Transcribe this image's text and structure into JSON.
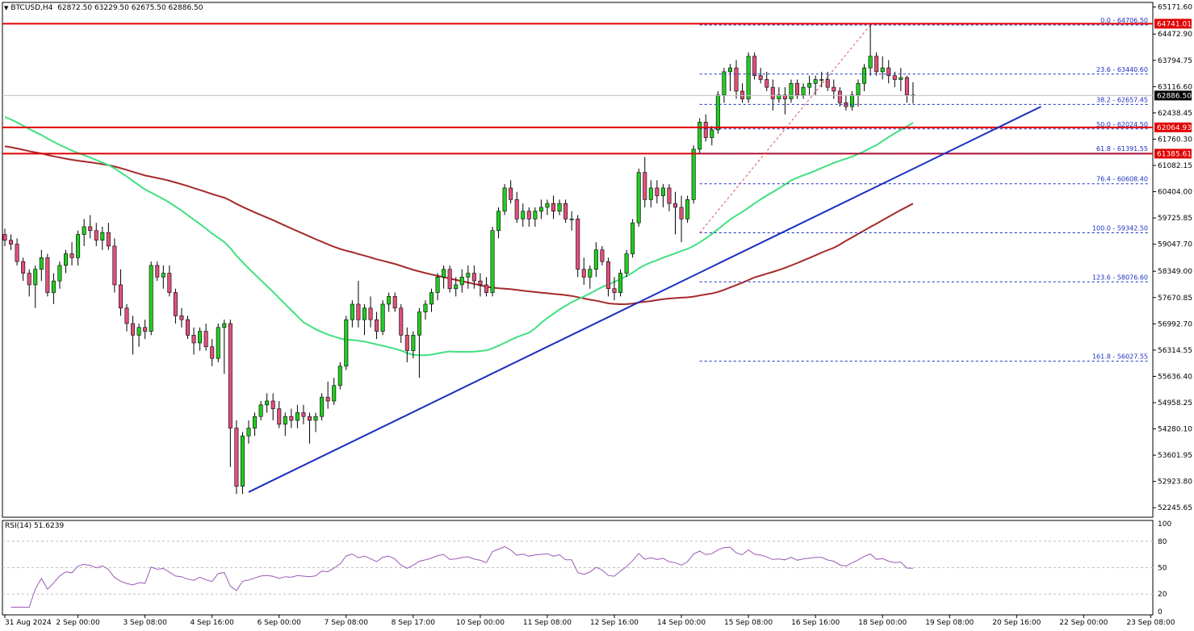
{
  "header": {
    "symbol": "BTCUSD,H4",
    "ohlc": "62872.50 63229.50 62675.50 62886.50"
  },
  "price_axis": {
    "labels": [
      "65171.60",
      "64472.90",
      "63794.75",
      "63116.60",
      "62438.45",
      "61760.30",
      "61082.15",
      "60404.00",
      "59725.85",
      "59047.70",
      "58349.00",
      "57670.85",
      "56992.70",
      "56314.55",
      "55636.40",
      "54958.25",
      "54280.10",
      "53601.95",
      "52923.80",
      "52245.65"
    ]
  },
  "hlines": [
    {
      "price": 64741.01,
      "label": "64741.01",
      "color": "#e00000"
    },
    {
      "price": 62064.93,
      "label": "62064.93",
      "color": "#e00000"
    },
    {
      "price": 61385.61,
      "label": "61385.61",
      "color": "#e00000"
    }
  ],
  "current_price": {
    "price": 62886.5,
    "label": "62886.50"
  },
  "fib": [
    {
      "price": 64706.5,
      "label": "0.0 - 64706.50"
    },
    {
      "price": 63440.6,
      "label": "23.6 - 63440.60"
    },
    {
      "price": 62657.45,
      "label": "38.2 - 62657.45"
    },
    {
      "price": 62024.5,
      "label": "50.0 - 62024.50"
    },
    {
      "price": 61391.55,
      "label": "61.8 - 61391.55"
    },
    {
      "price": 60608.4,
      "label": "76.4 - 60608.40"
    },
    {
      "price": 59342.5,
      "label": "100.0 - 59342.50"
    },
    {
      "price": 58076.6,
      "label": "123.6 - 58076.60"
    },
    {
      "price": 56027.55,
      "label": "161.8 - 56027.55"
    }
  ],
  "time_axis": {
    "labels": [
      {
        "bar": 0,
        "text": "31 Aug 2024"
      },
      {
        "bar": 12,
        "text": "2 Sep 00:00"
      },
      {
        "bar": 23,
        "text": "3 Sep 08:00"
      },
      {
        "bar": 34,
        "text": "4 Sep 16:00"
      },
      {
        "bar": 45,
        "text": "6 Sep 00:00"
      },
      {
        "bar": 56,
        "text": "7 Sep 08:00"
      },
      {
        "bar": 67,
        "text": "8 Sep 17:00"
      },
      {
        "bar": 78,
        "text": "10 Sep 00:00"
      },
      {
        "bar": 89,
        "text": "11 Sep 08:00"
      },
      {
        "bar": 100,
        "text": "12 Sep 16:00"
      },
      {
        "bar": 111,
        "text": "14 Sep 00:00"
      },
      {
        "bar": 122,
        "text": "15 Sep 08:00"
      },
      {
        "bar": 133,
        "text": "16 Sep 16:00"
      },
      {
        "bar": 144,
        "text": "18 Sep 00:00"
      },
      {
        "bar": 155,
        "text": "19 Sep 08:00"
      },
      {
        "bar": 166,
        "text": "20 Sep 16:00"
      },
      {
        "bar": 177,
        "text": "22 Sep 00:00"
      },
      {
        "bar": 188,
        "text": "23 Sep 08:00"
      }
    ]
  },
  "rsi": {
    "label": "RSI(14) 51.6239",
    "axis": [
      "100",
      "80",
      "50",
      "20",
      "0"
    ]
  },
  "colors": {
    "bull": "#22cc22",
    "bear": "#e0507a",
    "ma_slow": "#a52a2a",
    "ma_fast": "#40e080",
    "trendline": "#1a2fbf",
    "level": "#e00000",
    "fib": "#1a2fbf",
    "rsi": "#9b59b6"
  },
  "chart_data": {
    "type": "candlestick",
    "symbol": "BTCUSD",
    "timeframe": "H4",
    "ohlc": [
      [
        59300,
        59450,
        59000,
        59150
      ],
      [
        59150,
        59300,
        58900,
        59050
      ],
      [
        59050,
        59200,
        58500,
        58600
      ],
      [
        58600,
        58700,
        58100,
        58300
      ],
      [
        58300,
        58400,
        57700,
        58000
      ],
      [
        58000,
        58500,
        57400,
        58400
      ],
      [
        58400,
        58900,
        58100,
        58700
      ],
      [
        58700,
        58800,
        57700,
        57800
      ],
      [
        57800,
        58300,
        57500,
        58100
      ],
      [
        58100,
        58600,
        57900,
        58500
      ],
      [
        58500,
        58900,
        58300,
        58800
      ],
      [
        58800,
        59100,
        58500,
        58700
      ],
      [
        58700,
        59400,
        58500,
        59300
      ],
      [
        59300,
        59700,
        59000,
        59500
      ],
      [
        59500,
        59800,
        59200,
        59400
      ],
      [
        59400,
        59600,
        59000,
        59150
      ],
      [
        59150,
        59500,
        58900,
        59350
      ],
      [
        59350,
        59600,
        58900,
        59000
      ],
      [
        59000,
        59200,
        57800,
        58000
      ],
      [
        58000,
        58400,
        57200,
        57400
      ],
      [
        57400,
        57500,
        56800,
        57000
      ],
      [
        57000,
        57200,
        56200,
        56700
      ],
      [
        56700,
        57000,
        56400,
        56900
      ],
      [
        56900,
        57100,
        56600,
        56800
      ],
      [
        56800,
        58600,
        56700,
        58500
      ],
      [
        58500,
        58600,
        58100,
        58200
      ],
      [
        58200,
        58500,
        57900,
        58300
      ],
      [
        58300,
        58500,
        57700,
        57800
      ],
      [
        57800,
        57900,
        57000,
        57200
      ],
      [
        57200,
        57400,
        56900,
        57100
      ],
      [
        57100,
        57200,
        56600,
        56700
      ],
      [
        56700,
        56900,
        56200,
        56500
      ],
      [
        56500,
        56900,
        56300,
        56800
      ],
      [
        56800,
        57000,
        56300,
        56400
      ],
      [
        56400,
        56600,
        55900,
        56100
      ],
      [
        56100,
        57000,
        56000,
        56900
      ],
      [
        56900,
        57100,
        55700,
        57000
      ],
      [
        57000,
        57100,
        53300,
        54300
      ],
      [
        54300,
        54500,
        52600,
        52800
      ],
      [
        52800,
        54200,
        52600,
        54100
      ],
      [
        54100,
        54500,
        53900,
        54300
      ],
      [
        54300,
        54700,
        54100,
        54600
      ],
      [
        54600,
        55000,
        54500,
        54900
      ],
      [
        54900,
        55200,
        54700,
        55000
      ],
      [
        55000,
        55200,
        54500,
        54800
      ],
      [
        54800,
        55000,
        54300,
        54400
      ],
      [
        54400,
        54700,
        54100,
        54600
      ],
      [
        54600,
        54800,
        54300,
        54500
      ],
      [
        54500,
        54900,
        54300,
        54700
      ],
      [
        54700,
        54900,
        54400,
        54600
      ],
      [
        54600,
        54700,
        53900,
        54500
      ],
      [
        54500,
        54700,
        54200,
        54600
      ],
      [
        54600,
        55200,
        54500,
        55100
      ],
      [
        55100,
        55500,
        54800,
        55000
      ],
      [
        55000,
        55600,
        54900,
        55400
      ],
      [
        55400,
        56000,
        55300,
        55900
      ],
      [
        55900,
        57200,
        55800,
        57100
      ],
      [
        57100,
        57600,
        56900,
        57500
      ],
      [
        57500,
        58100,
        56900,
        57100
      ],
      [
        57100,
        57500,
        56700,
        57400
      ],
      [
        57400,
        57700,
        56900,
        57100
      ],
      [
        57100,
        57300,
        56600,
        56800
      ],
      [
        56800,
        57600,
        56700,
        57500
      ],
      [
        57500,
        57800,
        57300,
        57700
      ],
      [
        57700,
        57800,
        57300,
        57400
      ],
      [
        57400,
        57500,
        56500,
        56700
      ],
      [
        56700,
        56900,
        56000,
        56300
      ],
      [
        56300,
        56800,
        56100,
        56700
      ],
      [
        56700,
        57400,
        55600,
        57300
      ],
      [
        57300,
        57600,
        57100,
        57500
      ],
      [
        57500,
        57900,
        57300,
        57800
      ],
      [
        57800,
        58300,
        57600,
        58200
      ],
      [
        58200,
        58500,
        57900,
        58400
      ],
      [
        58400,
        58500,
        57800,
        57900
      ],
      [
        57900,
        58200,
        57700,
        58000
      ],
      [
        58000,
        58400,
        57800,
        58200
      ],
      [
        58200,
        58500,
        57900,
        58300
      ],
      [
        58300,
        58500,
        57900,
        58100
      ],
      [
        58100,
        58300,
        57700,
        58000
      ],
      [
        58000,
        58200,
        57700,
        57800
      ],
      [
        57800,
        59500,
        57700,
        59400
      ],
      [
        59400,
        60000,
        59200,
        59900
      ],
      [
        59900,
        60600,
        59800,
        60500
      ],
      [
        60500,
        60700,
        60100,
        60200
      ],
      [
        60200,
        60400,
        59600,
        59700
      ],
      [
        59700,
        60100,
        59500,
        59900
      ],
      [
        59900,
        60000,
        59500,
        59700
      ],
      [
        59700,
        60000,
        59500,
        59900
      ],
      [
        59900,
        60200,
        59700,
        60000
      ],
      [
        60000,
        60200,
        59800,
        60100
      ],
      [
        60100,
        60300,
        59700,
        59900
      ],
      [
        59900,
        60200,
        59800,
        60100
      ],
      [
        60100,
        60200,
        59600,
        59700
      ],
      [
        59700,
        59900,
        59400,
        59700
      ],
      [
        59700,
        59800,
        58200,
        58400
      ],
      [
        58400,
        58700,
        58000,
        58200
      ],
      [
        58200,
        58500,
        57900,
        58400
      ],
      [
        58400,
        59100,
        58200,
        58900
      ],
      [
        58900,
        59000,
        58500,
        58600
      ],
      [
        58600,
        58700,
        57700,
        57900
      ],
      [
        57900,
        58200,
        57600,
        57800
      ],
      [
        57800,
        58400,
        57700,
        58300
      ],
      [
        58300,
        58900,
        58200,
        58800
      ],
      [
        58800,
        59700,
        58700,
        59600
      ],
      [
        59600,
        61000,
        59500,
        60900
      ],
      [
        60900,
        61300,
        60000,
        60200
      ],
      [
        60200,
        60700,
        60000,
        60500
      ],
      [
        60500,
        60700,
        60100,
        60300
      ],
      [
        60300,
        60600,
        60000,
        60500
      ],
      [
        60500,
        60600,
        59900,
        60100
      ],
      [
        60100,
        60400,
        59300,
        60000
      ],
      [
        60000,
        60300,
        59100,
        59700
      ],
      [
        59700,
        60300,
        59600,
        60200
      ],
      [
        60200,
        61600,
        60100,
        61500
      ],
      [
        61500,
        62300,
        61400,
        62200
      ],
      [
        62200,
        62400,
        61700,
        61800
      ],
      [
        61800,
        62100,
        61600,
        62000
      ],
      [
        62000,
        63000,
        61900,
        62900
      ],
      [
        62900,
        63600,
        62700,
        63500
      ],
      [
        63500,
        63700,
        63000,
        63600
      ],
      [
        63600,
        63800,
        62800,
        63000
      ],
      [
        63000,
        63200,
        62700,
        62800
      ],
      [
        62800,
        64000,
        62700,
        63900
      ],
      [
        63900,
        64000,
        63300,
        63400
      ],
      [
        63400,
        63600,
        63200,
        63300
      ],
      [
        63300,
        63500,
        63000,
        63100
      ],
      [
        63100,
        63300,
        62500,
        62800
      ],
      [
        62800,
        63100,
        62700,
        62900
      ],
      [
        62900,
        63100,
        62400,
        62800
      ],
      [
        62800,
        63300,
        62700,
        63200
      ],
      [
        63200,
        63300,
        62800,
        62900
      ],
      [
        62900,
        63200,
        62800,
        63100
      ],
      [
        63100,
        63400,
        62900,
        63200
      ],
      [
        63200,
        63400,
        62900,
        63300
      ],
      [
        63300,
        63500,
        63100,
        63300
      ],
      [
        63300,
        63500,
        63000,
        63100
      ],
      [
        63100,
        63300,
        62800,
        63000
      ],
      [
        63000,
        63100,
        62600,
        62700
      ],
      [
        62700,
        62900,
        62500,
        62600
      ],
      [
        62600,
        63000,
        62500,
        62900
      ],
      [
        62900,
        63300,
        62600,
        63200
      ],
      [
        63200,
        63700,
        63000,
        63600
      ],
      [
        63600,
        64750,
        63400,
        63900
      ],
      [
        63900,
        64000,
        63400,
        63500
      ],
      [
        63500,
        63900,
        63300,
        63600
      ],
      [
        63600,
        63800,
        63200,
        63400
      ],
      [
        63400,
        63500,
        63100,
        63300
      ],
      [
        63300,
        63600,
        63000,
        63350
      ],
      [
        63350,
        63400,
        62700,
        62900
      ],
      [
        62900,
        63230,
        62680,
        62890
      ]
    ],
    "trendline": {
      "from": [
        52650,
        0
      ],
      "to": [
        62700,
        1
      ]
    },
    "ma_note": "two moving averages",
    "rsi_period": 14
  }
}
